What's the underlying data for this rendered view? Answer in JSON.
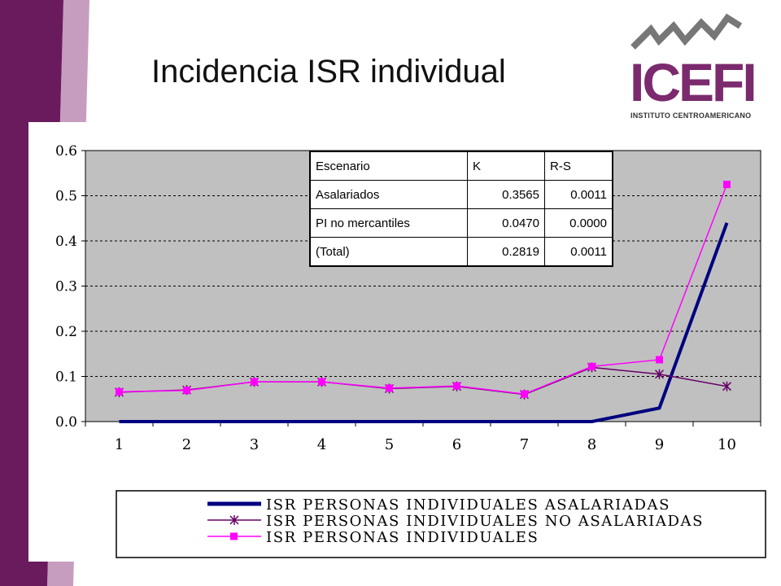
{
  "title": "Incidencia ISR individual",
  "logo": {
    "name": "ICEFI",
    "subtitle": "INSTITUTO CENTROAMERICANO"
  },
  "colors": {
    "plot_bg": "#c0c0c0",
    "series_salaried": "#000080",
    "series_non_salaried": "#660066",
    "series_total": "#ff00ff",
    "sidebar": "#6a1b5d"
  },
  "stats_table": {
    "headers": [
      "Escenario",
      "K",
      "R-S"
    ],
    "rows": [
      {
        "name": "Asalariados",
        "k": "0.3565",
        "rs": "0.0011"
      },
      {
        "name": "PI no mercantiles",
        "k": "0.0470",
        "rs": "0.0000"
      },
      {
        "name": "(Total)",
        "k": "0.2819",
        "rs": "0.0011"
      }
    ]
  },
  "chart_data": {
    "type": "line",
    "title": "",
    "xlabel": "",
    "ylabel": "",
    "x": [
      1,
      2,
      3,
      4,
      5,
      6,
      7,
      8,
      9,
      10
    ],
    "y_ticks": [
      "0.0",
      "0.1",
      "0.2",
      "0.3",
      "0.4",
      "0.5",
      "0.6"
    ],
    "ylim": [
      0,
      0.6
    ],
    "grid": "horizontal dashed",
    "legend_position": "bottom",
    "series": [
      {
        "name": "ISR PERSONAS INDIVIDUALES ASALARIADAS",
        "marker": "none",
        "values": [
          0.0,
          0.0,
          0.0,
          0.0,
          0.0,
          0.0,
          0.0,
          0.0,
          0.03,
          0.44
        ]
      },
      {
        "name": "ISR PERSONAS INDIVIDUALES NO ASALARIADAS",
        "marker": "asterisk",
        "values": [
          0.065,
          0.07,
          0.088,
          0.088,
          0.073,
          0.078,
          0.06,
          0.12,
          0.105,
          0.078
        ]
      },
      {
        "name": "ISR PERSONAS INDIVIDUALES",
        "marker": "square",
        "values": [
          0.066,
          0.069,
          0.088,
          0.088,
          0.074,
          0.079,
          0.061,
          0.122,
          0.137,
          0.525
        ]
      }
    ]
  }
}
